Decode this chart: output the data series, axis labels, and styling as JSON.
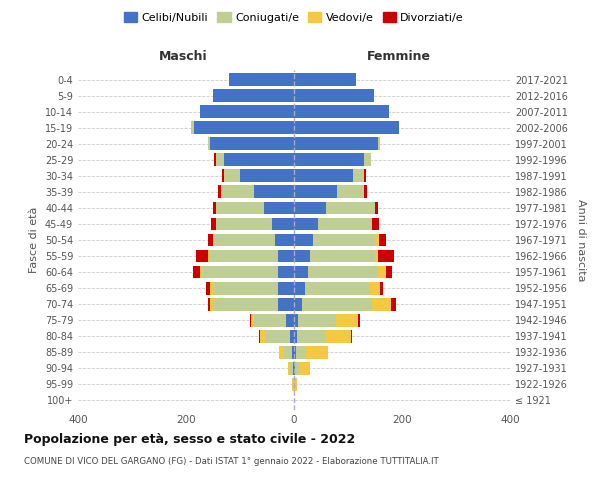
{
  "age_groups": [
    "100+",
    "95-99",
    "90-94",
    "85-89",
    "80-84",
    "75-79",
    "70-74",
    "65-69",
    "60-64",
    "55-59",
    "50-54",
    "45-49",
    "40-44",
    "35-39",
    "30-34",
    "25-29",
    "20-24",
    "15-19",
    "10-14",
    "5-9",
    "0-4"
  ],
  "birth_years": [
    "≤ 1921",
    "1922-1926",
    "1927-1931",
    "1932-1936",
    "1937-1941",
    "1942-1946",
    "1947-1951",
    "1952-1956",
    "1957-1961",
    "1962-1966",
    "1967-1971",
    "1972-1976",
    "1977-1981",
    "1982-1986",
    "1987-1991",
    "1992-1996",
    "1997-2001",
    "2002-2006",
    "2007-2011",
    "2012-2016",
    "2017-2021"
  ],
  "maschi": {
    "celibi": [
      0,
      0,
      2,
      3,
      8,
      15,
      30,
      30,
      30,
      30,
      35,
      40,
      55,
      75,
      100,
      130,
      155,
      185,
      175,
      150,
      120
    ],
    "coniugati": [
      0,
      2,
      5,
      15,
      45,
      60,
      120,
      120,
      140,
      125,
      115,
      105,
      90,
      60,
      30,
      15,
      5,
      5,
      0,
      0,
      0
    ],
    "vedovi": [
      0,
      2,
      5,
      10,
      10,
      5,
      5,
      5,
      5,
      5,
      0,
      0,
      0,
      0,
      0,
      0,
      0,
      0,
      0,
      0,
      0
    ],
    "divorziati": [
      0,
      0,
      0,
      0,
      2,
      2,
      5,
      8,
      12,
      22,
      10,
      8,
      5,
      5,
      3,
      3,
      0,
      0,
      0,
      0,
      0
    ]
  },
  "femmine": {
    "nubili": [
      0,
      0,
      2,
      3,
      5,
      8,
      15,
      20,
      25,
      30,
      35,
      45,
      60,
      80,
      110,
      130,
      155,
      195,
      175,
      148,
      115
    ],
    "coniugate": [
      0,
      3,
      8,
      20,
      55,
      70,
      130,
      120,
      130,
      120,
      115,
      100,
      90,
      50,
      20,
      12,
      5,
      0,
      0,
      0,
      0
    ],
    "vedove": [
      0,
      3,
      20,
      40,
      45,
      40,
      35,
      20,
      15,
      5,
      8,
      0,
      0,
      0,
      0,
      0,
      0,
      0,
      0,
      0,
      0
    ],
    "divorziate": [
      0,
      0,
      0,
      0,
      2,
      5,
      8,
      5,
      12,
      30,
      12,
      12,
      5,
      5,
      3,
      0,
      0,
      0,
      0,
      0,
      0
    ]
  },
  "colors": {
    "celibi_nubili": "#4472C4",
    "coniugati": "#BFCE93",
    "vedovi": "#F5C842",
    "divorziati": "#CC0000"
  },
  "xlim": 400,
  "title": "Popolazione per età, sesso e stato civile - 2022",
  "subtitle": "COMUNE DI VICO DEL GARGANO (FG) - Dati ISTAT 1° gennaio 2022 - Elaborazione TUTTITALIA.IT",
  "ylabel_left": "Fasce di età",
  "ylabel_right": "Anni di nascita",
  "legend_labels": [
    "Celibi/Nubili",
    "Coniugati/e",
    "Vedovi/e",
    "Divorziati/e"
  ],
  "maschi_label": "Maschi",
  "femmine_label": "Femmine",
  "background_color": "#FFFFFF",
  "grid_color": "#CCCCCC"
}
